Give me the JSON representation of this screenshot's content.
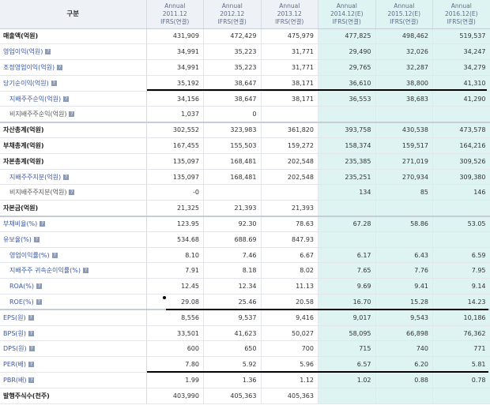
{
  "header": {
    "label": "구분",
    "periods": [
      {
        "type": "Annual",
        "date": "2011.12",
        "basis": "IFRS(연결)"
      },
      {
        "type": "Annual",
        "date": "2012.12",
        "basis": "IFRS(연결)"
      },
      {
        "type": "Annual",
        "date": "2013.12",
        "basis": "IFRS(연결)"
      },
      {
        "type": "Annual",
        "date": "2014.12(E)",
        "basis": "IFRS(연결)"
      },
      {
        "type": "Annual",
        "date": "2015.12(E)",
        "basis": "IFRS(연결)"
      },
      {
        "type": "Annual",
        "date": "2016.12(E)",
        "basis": "IFRS(연결)"
      }
    ]
  },
  "rows": [
    {
      "label": "매출액(억원)",
      "info": false,
      "values": [
        "431,909",
        "472,429",
        "475,979",
        "477,825",
        "498,462",
        "519,537"
      ]
    },
    {
      "label": "영업이익(억원)",
      "info": true,
      "values": [
        "34,991",
        "35,223",
        "31,771",
        "29,490",
        "32,026",
        "34,247"
      ]
    },
    {
      "label": "조정영업이익(억원)",
      "info": true,
      "values": [
        "34,991",
        "35,223",
        "31,771",
        "29,765",
        "32,287",
        "34,279"
      ]
    },
    {
      "label": "당기순이익(억원)",
      "info": true,
      "values": [
        "35,192",
        "38,647",
        "38,171",
        "36,610",
        "38,800",
        "41,310"
      ]
    },
    {
      "label": "지배주주순익(억원)",
      "info": true,
      "values": [
        "34,156",
        "38,647",
        "38,171",
        "36,553",
        "38,683",
        "41,290"
      ]
    },
    {
      "label": "비지배주주순익(억원)",
      "info": true,
      "values": [
        "1,037",
        "0",
        "",
        "",
        "",
        ""
      ]
    },
    {
      "label": "자산총계(억원)",
      "info": false,
      "values": [
        "302,552",
        "323,983",
        "361,820",
        "393,758",
        "430,538",
        "473,578"
      ]
    },
    {
      "label": "부채총계(억원)",
      "info": false,
      "values": [
        "167,455",
        "155,503",
        "159,272",
        "158,374",
        "159,517",
        "164,216"
      ]
    },
    {
      "label": "자본총계(억원)",
      "info": false,
      "values": [
        "135,097",
        "168,481",
        "202,548",
        "235,385",
        "271,019",
        "309,526"
      ]
    },
    {
      "label": "지배주주지분(억원)",
      "info": true,
      "values": [
        "135,097",
        "168,481",
        "202,548",
        "235,251",
        "270,934",
        "309,380"
      ]
    },
    {
      "label": "비지배주주지분(억원)",
      "info": true,
      "values": [
        "-0",
        "",
        "",
        "134",
        "85",
        "146"
      ]
    },
    {
      "label": "자본금(억원)",
      "info": false,
      "values": [
        "21,325",
        "21,393",
        "21,393",
        "",
        "",
        ""
      ]
    },
    {
      "label": "부채비율(%)",
      "info": true,
      "values": [
        "123.95",
        "92.30",
        "78.63",
        "67.28",
        "58.86",
        "53.05"
      ]
    },
    {
      "label": "유보율(%)",
      "info": true,
      "values": [
        "534.68",
        "688.69",
        "847.93",
        "",
        "",
        ""
      ]
    },
    {
      "label": "영업이익률(%)",
      "info": true,
      "values": [
        "8.10",
        "7.46",
        "6.67",
        "6.17",
        "6.43",
        "6.59"
      ]
    },
    {
      "label": "지배주주 귀속순이익률(%)",
      "info": true,
      "values": [
        "7.91",
        "8.18",
        "8.02",
        "7.65",
        "7.76",
        "7.95"
      ]
    },
    {
      "label": "ROA(%)",
      "info": true,
      "values": [
        "12.45",
        "12.34",
        "11.13",
        "9.69",
        "9.41",
        "9.14"
      ]
    },
    {
      "label": "ROE(%)",
      "info": true,
      "values": [
        "29.08",
        "25.46",
        "20.58",
        "16.70",
        "15.28",
        "14.23"
      ]
    },
    {
      "label": "EPS(원)",
      "info": true,
      "values": [
        "8,556",
        "9,537",
        "9,416",
        "9,017",
        "9,543",
        "10,186"
      ]
    },
    {
      "label": "BPS(원)",
      "info": true,
      "values": [
        "33,501",
        "41,623",
        "50,027",
        "58,095",
        "66,898",
        "76,362"
      ]
    },
    {
      "label": "DPS(원)",
      "info": true,
      "values": [
        "600",
        "650",
        "700",
        "715",
        "740",
        "771"
      ]
    },
    {
      "label": "PER(배)",
      "info": true,
      "values": [
        "7.80",
        "5.92",
        "5.96",
        "6.57",
        "6.20",
        "5.81"
      ]
    },
    {
      "label": "PBR(배)",
      "info": true,
      "values": [
        "1.99",
        "1.36",
        "1.12",
        "1.02",
        "0.88",
        "0.78"
      ]
    },
    {
      "label": "발행주식수(천주)",
      "info": false,
      "values": [
        "403,990",
        "405,363",
        "405,363",
        "",
        "",
        ""
      ]
    }
  ],
  "icons": {
    "info": "info-icon"
  }
}
